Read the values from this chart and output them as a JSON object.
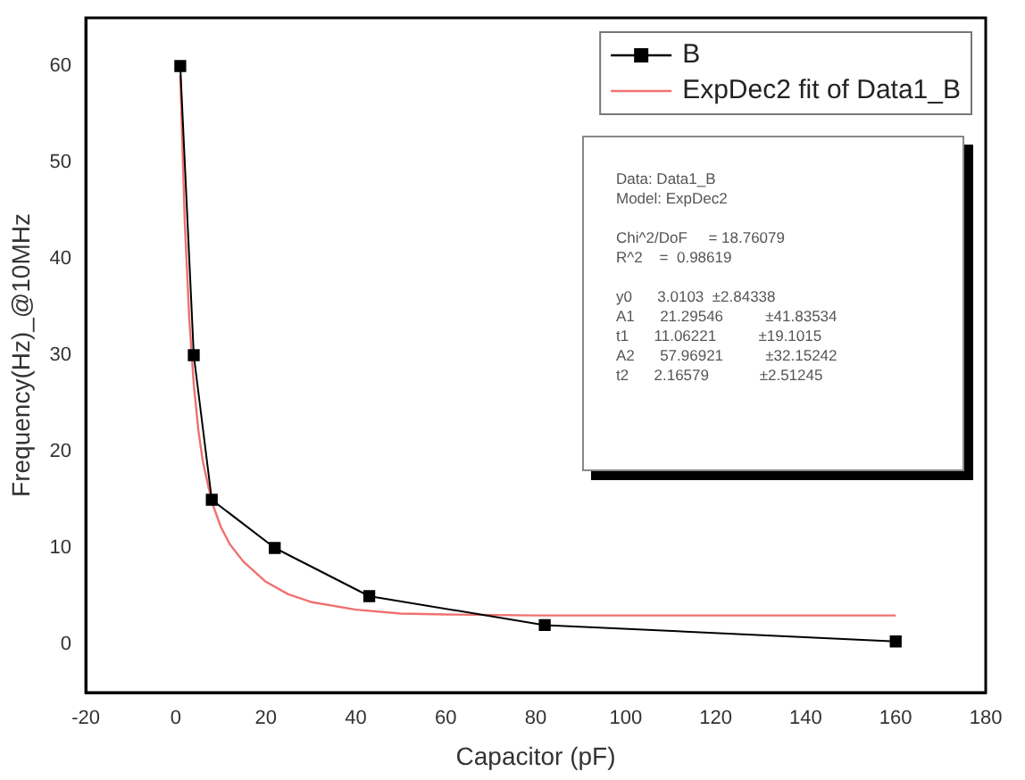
{
  "chart_data": {
    "type": "line",
    "xlabel": "Capacitor (pF)",
    "ylabel": "Frequency(Hz)_@10MHz",
    "x": [
      1,
      4,
      8,
      22,
      43,
      82,
      160
    ],
    "series": [
      {
        "name": "B",
        "color": "#000000",
        "values": [
          60,
          30,
          15,
          10,
          5,
          2,
          0.3
        ],
        "marker": "square"
      },
      {
        "name": "ExpDec2 fit of Data1_B",
        "color": "#f07070",
        "marker": "none",
        "x": [
          1,
          2,
          3,
          4,
          5,
          6,
          8,
          10,
          12,
          15,
          20,
          25,
          30,
          40,
          50,
          60,
          80,
          100,
          130,
          160
        ],
        "values": [
          59.0,
          43.8,
          33.8,
          27.0,
          22.3,
          19.0,
          14.8,
          12.2,
          10.4,
          8.6,
          6.5,
          5.2,
          4.4,
          3.6,
          3.2,
          3.1,
          3.0,
          3.0,
          3.0,
          3.0
        ]
      }
    ],
    "xlim": [
      -20,
      180
    ],
    "xticks": [
      -20,
      0,
      20,
      40,
      60,
      80,
      100,
      120,
      140,
      160,
      180
    ],
    "ylim": [
      -5,
      65
    ],
    "yticks": [
      0,
      10,
      20,
      30,
      40,
      50,
      60
    ],
    "grid": false,
    "legend": "top right",
    "line_style": "solid",
    "annotations": [
      "Data: Data1_B",
      "Model: ExpDec2",
      "Chi^2/DoF     = 18.76079",
      "R^2    =  0.98619",
      "y0      3.0103  ±2.84338",
      "A1      21.29546          ±41.83534",
      "t1      11.06221          ±19.1015",
      "A2      57.96921          ±32.15242",
      "t2      2.16579            ±2.51245"
    ]
  }
}
